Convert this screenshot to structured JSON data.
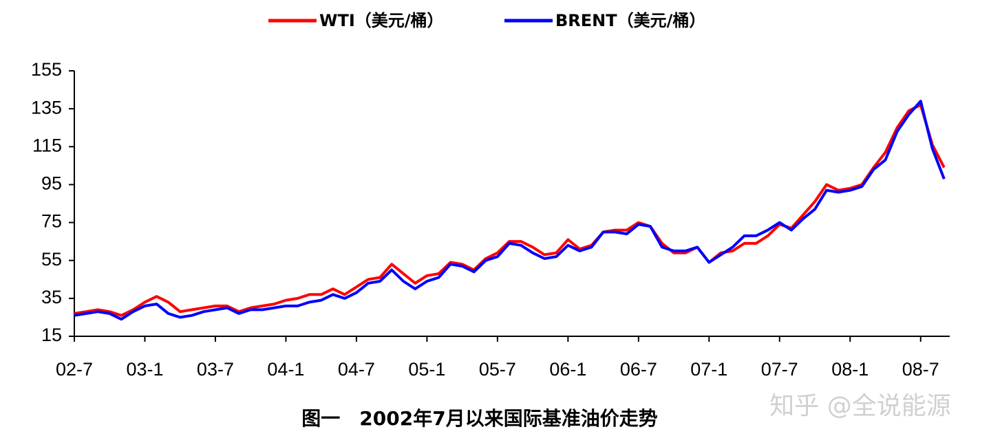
{
  "chart_data": {
    "type": "line",
    "title": "图一　2002年7月以来国际基准油价走势",
    "watermark": "知乎 @全说能源",
    "categories": [
      "02-7",
      null,
      null,
      null,
      null,
      null,
      "03-1",
      null,
      null,
      null,
      null,
      null,
      "03-7",
      null,
      null,
      null,
      null,
      null,
      "04-1",
      null,
      null,
      null,
      null,
      null,
      "04-7",
      null,
      null,
      null,
      null,
      null,
      "05-1",
      null,
      null,
      null,
      null,
      null,
      "05-7",
      null,
      null,
      null,
      null,
      null,
      "06-1",
      null,
      null,
      null,
      null,
      null,
      "06-7",
      null,
      null,
      null,
      null,
      null,
      "07-1",
      null,
      null,
      null,
      null,
      null,
      "07-7",
      null,
      null,
      null,
      null,
      null,
      "08-1",
      null,
      null,
      null,
      null,
      null,
      "08-7",
      null,
      null
    ],
    "series": [
      {
        "name": "WTI（美元/桶）",
        "color": "#ff0000",
        "values": [
          27,
          28,
          29,
          28,
          26,
          29,
          33,
          36,
          33,
          28,
          29,
          30,
          31,
          31,
          28,
          30,
          31,
          32,
          34,
          35,
          37,
          37,
          40,
          37,
          41,
          45,
          46,
          53,
          48,
          43,
          47,
          48,
          54,
          53,
          50,
          56,
          59,
          65,
          65,
          62,
          58,
          59,
          66,
          61,
          63,
          70,
          71,
          71,
          75,
          73,
          64,
          59,
          59,
          62,
          54,
          59,
          60,
          64,
          64,
          68,
          74,
          72,
          79,
          86,
          95,
          92,
          93,
          95,
          104,
          112,
          125,
          134,
          137,
          116,
          104
        ]
      },
      {
        "name": "BRENT（美元/桶）",
        "color": "#0000ff",
        "values": [
          26,
          27,
          28,
          27,
          24,
          28,
          31,
          32,
          27,
          25,
          26,
          28,
          29,
          30,
          27,
          29,
          29,
          30,
          31,
          31,
          33,
          34,
          37,
          35,
          38,
          43,
          44,
          50,
          44,
          40,
          44,
          46,
          53,
          52,
          49,
          55,
          57,
          64,
          63,
          59,
          56,
          57,
          63,
          60,
          62,
          70,
          70,
          69,
          74,
          73,
          62,
          60,
          60,
          62,
          54,
          58,
          62,
          68,
          68,
          71,
          75,
          71,
          77,
          82,
          92,
          91,
          92,
          94,
          103,
          108,
          123,
          132,
          139,
          114,
          98
        ]
      }
    ],
    "ylim": [
      15,
      155
    ],
    "yticks": [
      15,
      35,
      55,
      75,
      95,
      115,
      135,
      155
    ],
    "grid": false,
    "legend": "top"
  }
}
